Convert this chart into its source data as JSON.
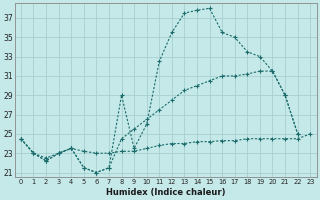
{
  "xlabel": "Humidex (Indice chaleur)",
  "bg_color": "#c5e8e8",
  "grid_color": "#a8d0d0",
  "line_color": "#1a6b6b",
  "xlim": [
    -0.5,
    23.5
  ],
  "ylim": [
    20.5,
    38.5
  ],
  "yticks": [
    21,
    23,
    25,
    27,
    29,
    31,
    33,
    35,
    37
  ],
  "xticks": [
    0,
    1,
    2,
    3,
    4,
    5,
    6,
    7,
    8,
    9,
    10,
    11,
    12,
    13,
    14,
    15,
    16,
    17,
    18,
    19,
    20,
    21,
    22,
    23
  ],
  "series": [
    {
      "x": [
        0,
        1,
        2,
        3,
        4,
        5,
        6,
        7,
        8,
        9,
        10,
        11,
        12,
        13,
        14,
        15,
        16,
        17,
        18,
        19,
        20,
        21,
        22
      ],
      "y": [
        24.5,
        23.0,
        22.2,
        23.0,
        23.5,
        21.5,
        21.0,
        21.5,
        29.0,
        23.5,
        26.0,
        32.5,
        35.5,
        37.5,
        37.8,
        38.0,
        35.5,
        35.0,
        33.5,
        33.0,
        31.5,
        29.0,
        25.0
      ]
    },
    {
      "x": [
        0,
        1,
        2,
        3,
        4,
        5,
        6,
        7,
        8,
        9,
        10,
        11,
        12,
        13,
        14,
        15,
        16,
        17,
        18,
        19,
        20,
        21,
        22
      ],
      "y": [
        24.5,
        23.0,
        22.2,
        23.0,
        23.5,
        21.5,
        21.0,
        21.5,
        24.5,
        25.5,
        26.5,
        27.5,
        28.5,
        29.5,
        30.0,
        30.5,
        31.0,
        31.0,
        31.2,
        31.5,
        31.5,
        29.0,
        25.0
      ]
    },
    {
      "x": [
        0,
        1,
        2,
        3,
        4,
        5,
        6,
        7,
        8,
        9,
        10,
        11,
        12,
        13,
        14,
        15,
        16,
        17,
        18,
        19,
        20,
        21,
        22,
        23
      ],
      "y": [
        24.5,
        23.0,
        22.5,
        23.0,
        23.5,
        23.2,
        23.0,
        23.0,
        23.2,
        23.2,
        23.5,
        23.8,
        24.0,
        24.0,
        24.2,
        24.2,
        24.3,
        24.3,
        24.5,
        24.5,
        24.5,
        24.5,
        24.5,
        25.0
      ]
    }
  ]
}
